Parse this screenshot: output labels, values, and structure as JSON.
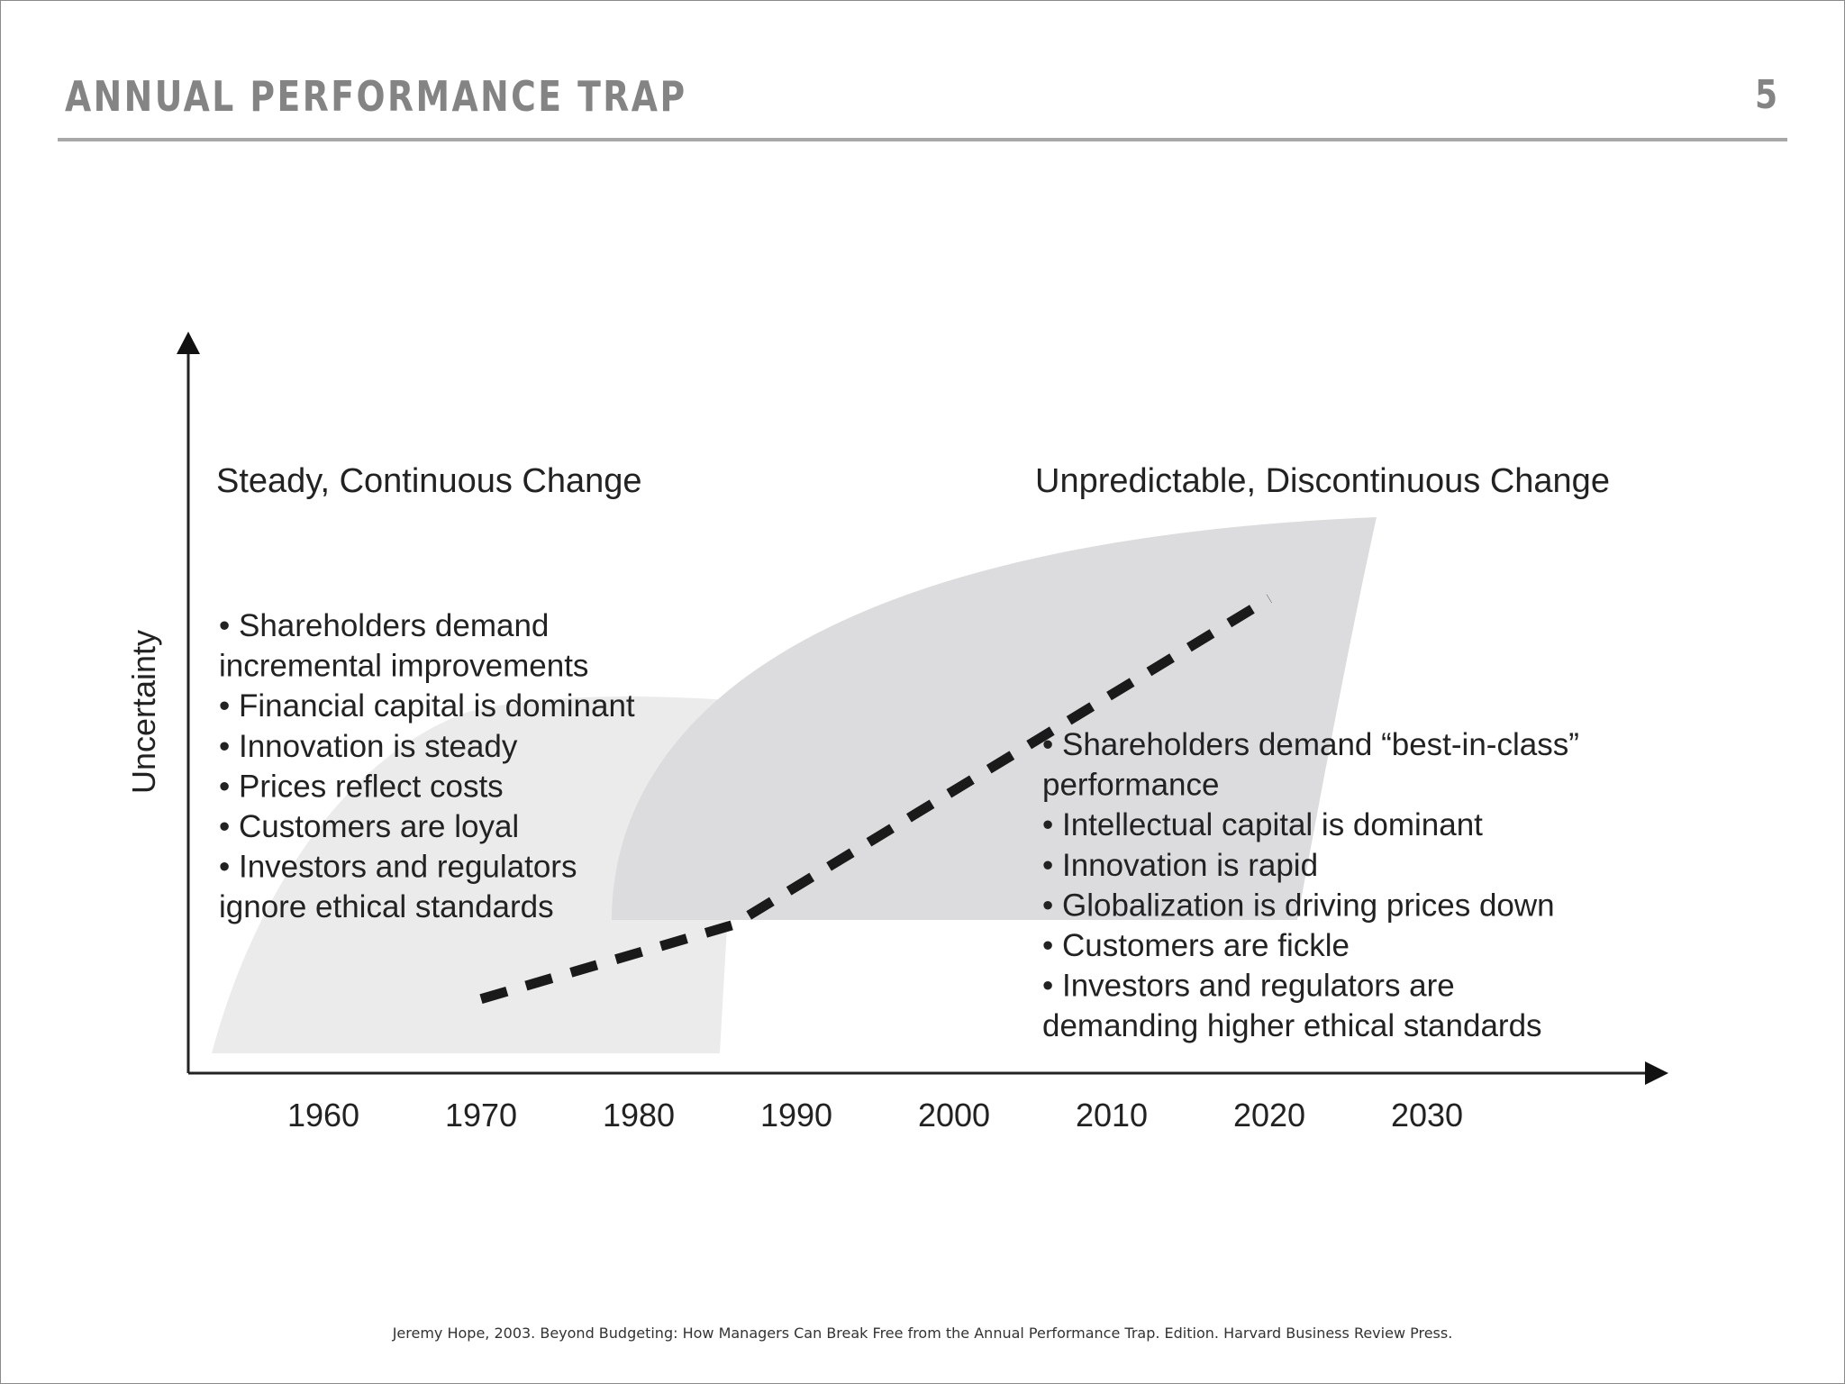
{
  "header": {
    "title": "ANNUAL PERFORMANCE TRAP",
    "page_number": "5"
  },
  "diagram": {
    "y_axis_label": "Uncertainty",
    "left_heading": "Steady, Continuous Change",
    "right_heading": "Unpredictable, Discontinuous Change",
    "left_bullets": [
      "• Shareholders demand",
      "   incremental improvements",
      "• Financial capital is dominant",
      "• Innovation is steady",
      "• Prices reflect costs",
      "• Customers are loyal",
      "• Investors and regulators",
      "   ignore ethical standards"
    ],
    "right_bullets": [
      "• Shareholders demand “best-in-class”",
      "   performance",
      "• Intellectual capital is dominant",
      "• Innovation is rapid",
      "• Globalization is driving prices down",
      "• Customers are fickle",
      "• Investors and regulators are",
      "  demanding higher ethical standards"
    ],
    "colors": {
      "left_region": "#ebebeb",
      "right_region": "#dcdcde",
      "line": "#1a1a1a"
    }
  },
  "chart_data": {
    "type": "line",
    "x_tick_labels": [
      "1960",
      "1970",
      "1980",
      "1990",
      "2000",
      "2010",
      "2020",
      "2030"
    ],
    "ylabel": "Uncertainty",
    "xlim": [
      1960,
      2030
    ],
    "ylim": [
      0,
      100
    ],
    "grid": false,
    "series": [
      {
        "style": "dashed",
        "x": [
          1970,
          1986,
          2020
        ],
        "y": [
          10,
          20,
          64
        ]
      }
    ]
  },
  "footer": {
    "citation": "Jeremy Hope, 2003. Beyond Budgeting: How Managers Can Break Free from the Annual Performance Trap. Edition. Harvard Business Review Press."
  }
}
